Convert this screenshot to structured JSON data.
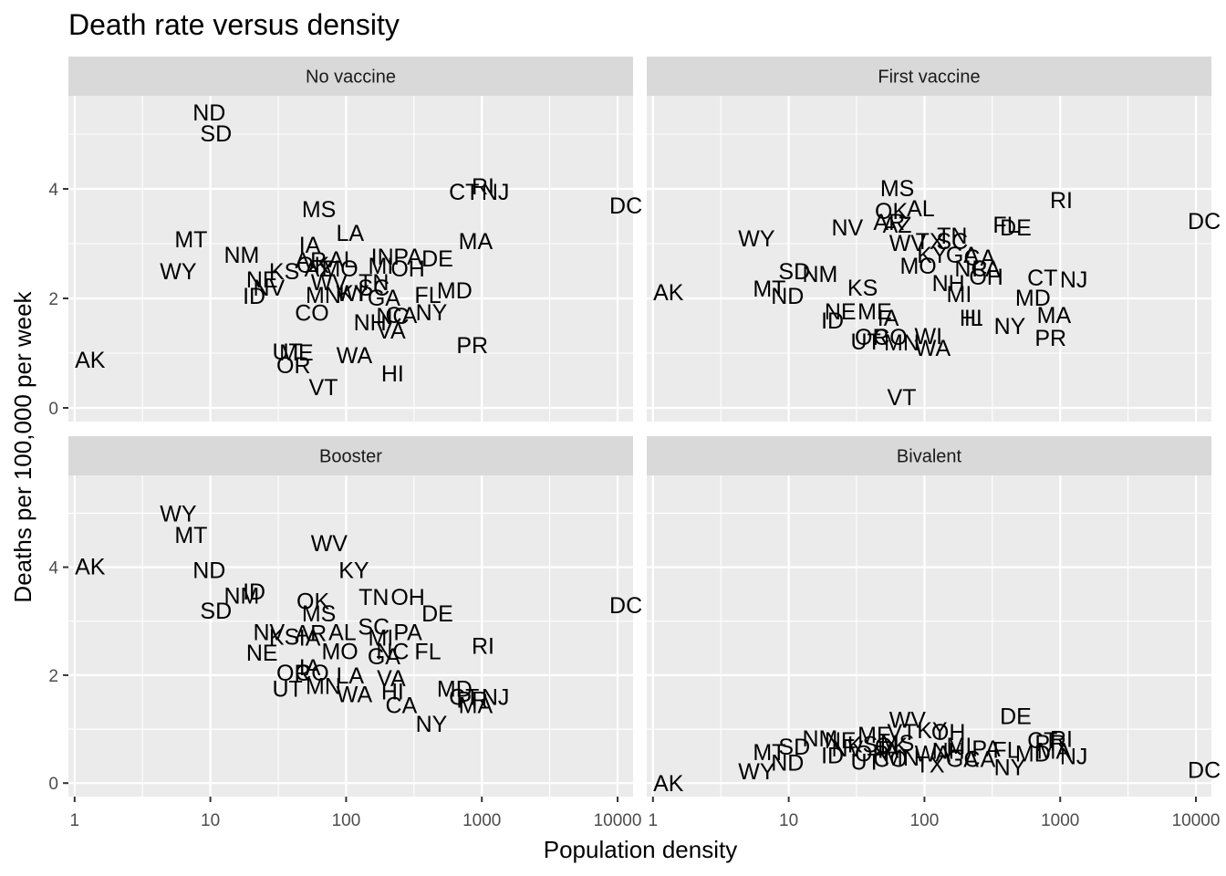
{
  "chart_data": {
    "type": "scatter",
    "title": "Death rate versus density",
    "xlabel": "Population density",
    "ylabel": "Deaths per 100,000 per week",
    "x_scale": "log10",
    "xlim": [
      0.9,
      13000
    ],
    "ylim": [
      -0.25,
      5.7
    ],
    "x_ticks": [
      {
        "value": 1,
        "label": "1"
      },
      {
        "value": 10,
        "label": "10"
      },
      {
        "value": 100,
        "label": "100"
      },
      {
        "value": 1000,
        "label": "1000"
      },
      {
        "value": 10000,
        "label": "10000"
      }
    ],
    "y_ticks": [
      {
        "value": 0,
        "label": "0"
      },
      {
        "value": 2,
        "label": "2"
      },
      {
        "value": 4,
        "label": "4"
      }
    ],
    "grid": true,
    "colors": {
      "panel_bg": "#ebebeb",
      "strip_bg": "#d9d9d9",
      "grid": "#ffffff",
      "text": "#000000"
    },
    "panels": [
      {
        "name": "No vaccine",
        "points": [
          {
            "label": "AK",
            "x": 1.3,
            "y": 0.88
          },
          {
            "label": "ND",
            "x": 9.8,
            "y": 5.4
          },
          {
            "label": "SD",
            "x": 11,
            "y": 5.02
          },
          {
            "label": "MT",
            "x": 7.2,
            "y": 3.08
          },
          {
            "label": "WY",
            "x": 5.8,
            "y": 2.5
          },
          {
            "label": "NM",
            "x": 17,
            "y": 2.8
          },
          {
            "label": "NE",
            "x": 24,
            "y": 2.35
          },
          {
            "label": "KS",
            "x": 35,
            "y": 2.5
          },
          {
            "label": "ID",
            "x": 21,
            "y": 2.05
          },
          {
            "label": "NV",
            "x": 27,
            "y": 2.2
          },
          {
            "label": "UT",
            "x": 37,
            "y": 1.03
          },
          {
            "label": "ME",
            "x": 43,
            "y": 1.02
          },
          {
            "label": "OR",
            "x": 41,
            "y": 0.78
          },
          {
            "label": "VT",
            "x": 68,
            "y": 0.38
          },
          {
            "label": "MS",
            "x": 63,
            "y": 3.63
          },
          {
            "label": "LA",
            "x": 107,
            "y": 3.2
          },
          {
            "label": "IA",
            "x": 54,
            "y": 2.98
          },
          {
            "label": "AR",
            "x": 55,
            "y": 2.7
          },
          {
            "label": "AL",
            "x": 94,
            "y": 2.72
          },
          {
            "label": "OK",
            "x": 57,
            "y": 2.62
          },
          {
            "label": "AZ",
            "x": 63,
            "y": 2.55
          },
          {
            "label": "MO",
            "x": 90,
            "y": 2.55
          },
          {
            "label": "CO",
            "x": 56,
            "y": 1.74
          },
          {
            "label": "MN",
            "x": 68,
            "y": 2.07
          },
          {
            "label": "WV",
            "x": 75,
            "y": 2.3
          },
          {
            "label": "WI",
            "x": 107,
            "y": 2.1
          },
          {
            "label": "KY",
            "x": 114,
            "y": 2.1
          },
          {
            "label": "SC",
            "x": 160,
            "y": 2.2
          },
          {
            "label": "TN",
            "x": 160,
            "y": 2.3
          },
          {
            "label": "MI",
            "x": 180,
            "y": 2.6
          },
          {
            "label": "GA",
            "x": 190,
            "y": 2.02
          },
          {
            "label": "IN",
            "x": 185,
            "y": 2.77
          },
          {
            "label": "PA",
            "x": 285,
            "y": 2.77
          },
          {
            "label": "OH",
            "x": 285,
            "y": 2.55
          },
          {
            "label": "DE",
            "x": 470,
            "y": 2.73
          },
          {
            "label": "FL",
            "x": 400,
            "y": 2.07
          },
          {
            "label": "MD",
            "x": 630,
            "y": 2.15
          },
          {
            "label": "NC",
            "x": 220,
            "y": 1.68
          },
          {
            "label": "NH",
            "x": 150,
            "y": 1.57
          },
          {
            "label": "CA",
            "x": 255,
            "y": 1.7
          },
          {
            "label": "NY",
            "x": 425,
            "y": 1.75
          },
          {
            "label": "VA",
            "x": 215,
            "y": 1.42
          },
          {
            "label": "WA",
            "x": 115,
            "y": 0.97
          },
          {
            "label": "HI",
            "x": 220,
            "y": 0.63
          },
          {
            "label": "PR",
            "x": 850,
            "y": 1.15
          },
          {
            "label": "CT",
            "x": 740,
            "y": 3.95
          },
          {
            "label": "RI",
            "x": 1020,
            "y": 4.05
          },
          {
            "label": "NJ",
            "x": 1260,
            "y": 3.95
          },
          {
            "label": "MA",
            "x": 900,
            "y": 3.05
          },
          {
            "label": "DC",
            "x": 11500,
            "y": 3.7
          }
        ]
      },
      {
        "name": "First vaccine",
        "points": [
          {
            "label": "AK",
            "x": 1.3,
            "y": 2.12
          },
          {
            "label": "WY",
            "x": 5.8,
            "y": 3.1
          },
          {
            "label": "SD",
            "x": 11,
            "y": 2.5
          },
          {
            "label": "NM",
            "x": 17,
            "y": 2.45
          },
          {
            "label": "MT",
            "x": 7.2,
            "y": 2.18
          },
          {
            "label": "ND",
            "x": 9.8,
            "y": 2.05
          },
          {
            "label": "KS",
            "x": 35,
            "y": 2.2
          },
          {
            "label": "NE",
            "x": 24,
            "y": 1.77
          },
          {
            "label": "ME",
            "x": 43,
            "y": 1.77
          },
          {
            "label": "ID",
            "x": 21,
            "y": 1.6
          },
          {
            "label": "IA",
            "x": 54,
            "y": 1.65
          },
          {
            "label": "UT",
            "x": 37,
            "y": 1.22
          },
          {
            "label": "OR",
            "x": 41,
            "y": 1.3
          },
          {
            "label": "CO",
            "x": 56,
            "y": 1.3
          },
          {
            "label": "MN",
            "x": 68,
            "y": 1.2
          },
          {
            "label": "WI",
            "x": 107,
            "y": 1.32
          },
          {
            "label": "WA",
            "x": 115,
            "y": 1.1
          },
          {
            "label": "VT",
            "x": 68,
            "y": 0.2
          },
          {
            "label": "NV",
            "x": 27,
            "y": 3.3
          },
          {
            "label": "MS",
            "x": 63,
            "y": 4.02
          },
          {
            "label": "OK",
            "x": 57,
            "y": 3.6
          },
          {
            "label": "AL",
            "x": 94,
            "y": 3.65
          },
          {
            "label": "AR",
            "x": 55,
            "y": 3.4
          },
          {
            "label": "AZ",
            "x": 63,
            "y": 3.35
          },
          {
            "label": "WV",
            "x": 75,
            "y": 3.02
          },
          {
            "label": "TX",
            "x": 110,
            "y": 3.05
          },
          {
            "label": "TN",
            "x": 160,
            "y": 3.15
          },
          {
            "label": "SC",
            "x": 160,
            "y": 3.05
          },
          {
            "label": "KY",
            "x": 114,
            "y": 2.8
          },
          {
            "label": "GA",
            "x": 190,
            "y": 2.8
          },
          {
            "label": "CA",
            "x": 255,
            "y": 2.75
          },
          {
            "label": "MO",
            "x": 90,
            "y": 2.6
          },
          {
            "label": "NC",
            "x": 220,
            "y": 2.55
          },
          {
            "label": "PA",
            "x": 285,
            "y": 2.55
          },
          {
            "label": "NH",
            "x": 150,
            "y": 2.28
          },
          {
            "label": "OH",
            "x": 285,
            "y": 2.4
          },
          {
            "label": "MI",
            "x": 180,
            "y": 2.08
          },
          {
            "label": "MA",
            "x": 900,
            "y": 1.7
          },
          {
            "label": "HI",
            "x": 220,
            "y": 1.65
          },
          {
            "label": "IL",
            "x": 230,
            "y": 1.65
          },
          {
            "label": "NY",
            "x": 425,
            "y": 1.5
          },
          {
            "label": "MD",
            "x": 630,
            "y": 2.02
          },
          {
            "label": "PR",
            "x": 850,
            "y": 1.28
          },
          {
            "label": "CT",
            "x": 740,
            "y": 2.38
          },
          {
            "label": "NJ",
            "x": 1260,
            "y": 2.35
          },
          {
            "label": "FL",
            "x": 400,
            "y": 3.35
          },
          {
            "label": "DE",
            "x": 470,
            "y": 3.3
          },
          {
            "label": "RI",
            "x": 1020,
            "y": 3.8
          },
          {
            "label": "DC",
            "x": 11500,
            "y": 3.42
          }
        ]
      },
      {
        "name": "Booster",
        "points": [
          {
            "label": "AK",
            "x": 1.3,
            "y": 4.02
          },
          {
            "label": "WY",
            "x": 5.8,
            "y": 5.0
          },
          {
            "label": "MT",
            "x": 7.2,
            "y": 4.6
          },
          {
            "label": "ND",
            "x": 9.8,
            "y": 3.95
          },
          {
            "label": "ID",
            "x": 21,
            "y": 3.55
          },
          {
            "label": "NM",
            "x": 17,
            "y": 3.48
          },
          {
            "label": "SD",
            "x": 11,
            "y": 3.2
          },
          {
            "label": "WV",
            "x": 75,
            "y": 4.45
          },
          {
            "label": "KY",
            "x": 114,
            "y": 3.95
          },
          {
            "label": "TN",
            "x": 160,
            "y": 3.45
          },
          {
            "label": "OH",
            "x": 285,
            "y": 3.45
          },
          {
            "label": "OK",
            "x": 57,
            "y": 3.38
          },
          {
            "label": "MS",
            "x": 63,
            "y": 3.15
          },
          {
            "label": "DE",
            "x": 470,
            "y": 3.15
          },
          {
            "label": "DC",
            "x": 11500,
            "y": 3.3
          },
          {
            "label": "NV",
            "x": 27,
            "y": 2.8
          },
          {
            "label": "KS",
            "x": 35,
            "y": 2.72
          },
          {
            "label": "IA",
            "x": 54,
            "y": 2.7
          },
          {
            "label": "AR",
            "x": 55,
            "y": 2.78
          },
          {
            "label": "AL",
            "x": 94,
            "y": 2.8
          },
          {
            "label": "SC",
            "x": 160,
            "y": 2.9
          },
          {
            "label": "PA",
            "x": 285,
            "y": 2.8
          },
          {
            "label": "MI",
            "x": 180,
            "y": 2.7
          },
          {
            "label": "NE",
            "x": 24,
            "y": 2.42
          },
          {
            "label": "MO",
            "x": 90,
            "y": 2.45
          },
          {
            "label": "NC",
            "x": 220,
            "y": 2.45
          },
          {
            "label": "GA",
            "x": 190,
            "y": 2.35
          },
          {
            "label": "FL",
            "x": 400,
            "y": 2.45
          },
          {
            "label": "RI",
            "x": 1020,
            "y": 2.55
          },
          {
            "label": "CO",
            "x": 56,
            "y": 2.05
          },
          {
            "label": "OR",
            "x": 41,
            "y": 2.05
          },
          {
            "label": "IA2",
            "x": 54,
            "y": 2.15
          },
          {
            "label": "VA",
            "x": 215,
            "y": 1.95
          },
          {
            "label": "LA",
            "x": 107,
            "y": 2.0
          },
          {
            "label": "UT",
            "x": 37,
            "y": 1.75
          },
          {
            "label": "MN",
            "x": 68,
            "y": 1.8
          },
          {
            "label": "WA",
            "x": 115,
            "y": 1.65
          },
          {
            "label": "HI",
            "x": 220,
            "y": 1.7
          },
          {
            "label": "CA",
            "x": 255,
            "y": 1.45
          },
          {
            "label": "MD",
            "x": 630,
            "y": 1.75
          },
          {
            "label": "PR",
            "x": 850,
            "y": 1.55
          },
          {
            "label": "CT",
            "x": 740,
            "y": 1.6
          },
          {
            "label": "NJ",
            "x": 1260,
            "y": 1.6
          },
          {
            "label": "MA",
            "x": 900,
            "y": 1.45
          },
          {
            "label": "NY",
            "x": 425,
            "y": 1.1
          }
        ]
      },
      {
        "name": "Bivalent",
        "points": [
          {
            "label": "AK",
            "x": 1.3,
            "y": 0.0
          },
          {
            "label": "WY",
            "x": 5.8,
            "y": 0.22
          },
          {
            "label": "MT",
            "x": 7.2,
            "y": 0.58
          },
          {
            "label": "ND",
            "x": 9.8,
            "y": 0.38
          },
          {
            "label": "SD",
            "x": 11,
            "y": 0.68
          },
          {
            "label": "NM",
            "x": 17,
            "y": 0.83
          },
          {
            "label": "ID",
            "x": 21,
            "y": 0.52
          },
          {
            "label": "NE",
            "x": 24,
            "y": 0.8
          },
          {
            "label": "ME",
            "x": 43,
            "y": 0.9
          },
          {
            "label": "WV",
            "x": 75,
            "y": 1.18
          },
          {
            "label": "KY",
            "x": 114,
            "y": 0.98
          },
          {
            "label": "VT",
            "x": 68,
            "y": 0.95
          },
          {
            "label": "OH",
            "x": 150,
            "y": 0.95
          },
          {
            "label": "IA",
            "x": 54,
            "y": 0.62
          },
          {
            "label": "OR",
            "x": 41,
            "y": 0.55
          },
          {
            "label": "UT",
            "x": 37,
            "y": 0.4
          },
          {
            "label": "CO",
            "x": 56,
            "y": 0.45
          },
          {
            "label": "MN",
            "x": 68,
            "y": 0.48
          },
          {
            "label": "MS",
            "x": 63,
            "y": 0.75
          },
          {
            "label": "OK",
            "x": 57,
            "y": 0.7
          },
          {
            "label": "NV",
            "x": 27,
            "y": 0.65
          },
          {
            "label": "KS",
            "x": 35,
            "y": 0.72
          },
          {
            "label": "WA",
            "x": 115,
            "y": 0.55
          },
          {
            "label": "TX",
            "x": 110,
            "y": 0.35
          },
          {
            "label": "GA",
            "x": 190,
            "y": 0.45
          },
          {
            "label": "CA",
            "x": 255,
            "y": 0.45
          },
          {
            "label": "NY",
            "x": 425,
            "y": 0.3
          },
          {
            "label": "PA",
            "x": 285,
            "y": 0.65
          },
          {
            "label": "MI",
            "x": 180,
            "y": 0.7
          },
          {
            "label": "NH",
            "x": 150,
            "y": 0.6
          },
          {
            "label": "DE",
            "x": 470,
            "y": 1.25
          },
          {
            "label": "FL",
            "x": 400,
            "y": 0.62
          },
          {
            "label": "MD",
            "x": 630,
            "y": 0.55
          },
          {
            "label": "PR",
            "x": 850,
            "y": 0.75
          },
          {
            "label": "CT",
            "x": 740,
            "y": 0.8
          },
          {
            "label": "RI",
            "x": 1020,
            "y": 0.82
          },
          {
            "label": "MA",
            "x": 900,
            "y": 0.6
          },
          {
            "label": "NJ",
            "x": 1260,
            "y": 0.5
          },
          {
            "label": "DC",
            "x": 11500,
            "y": 0.25
          }
        ]
      }
    ]
  }
}
